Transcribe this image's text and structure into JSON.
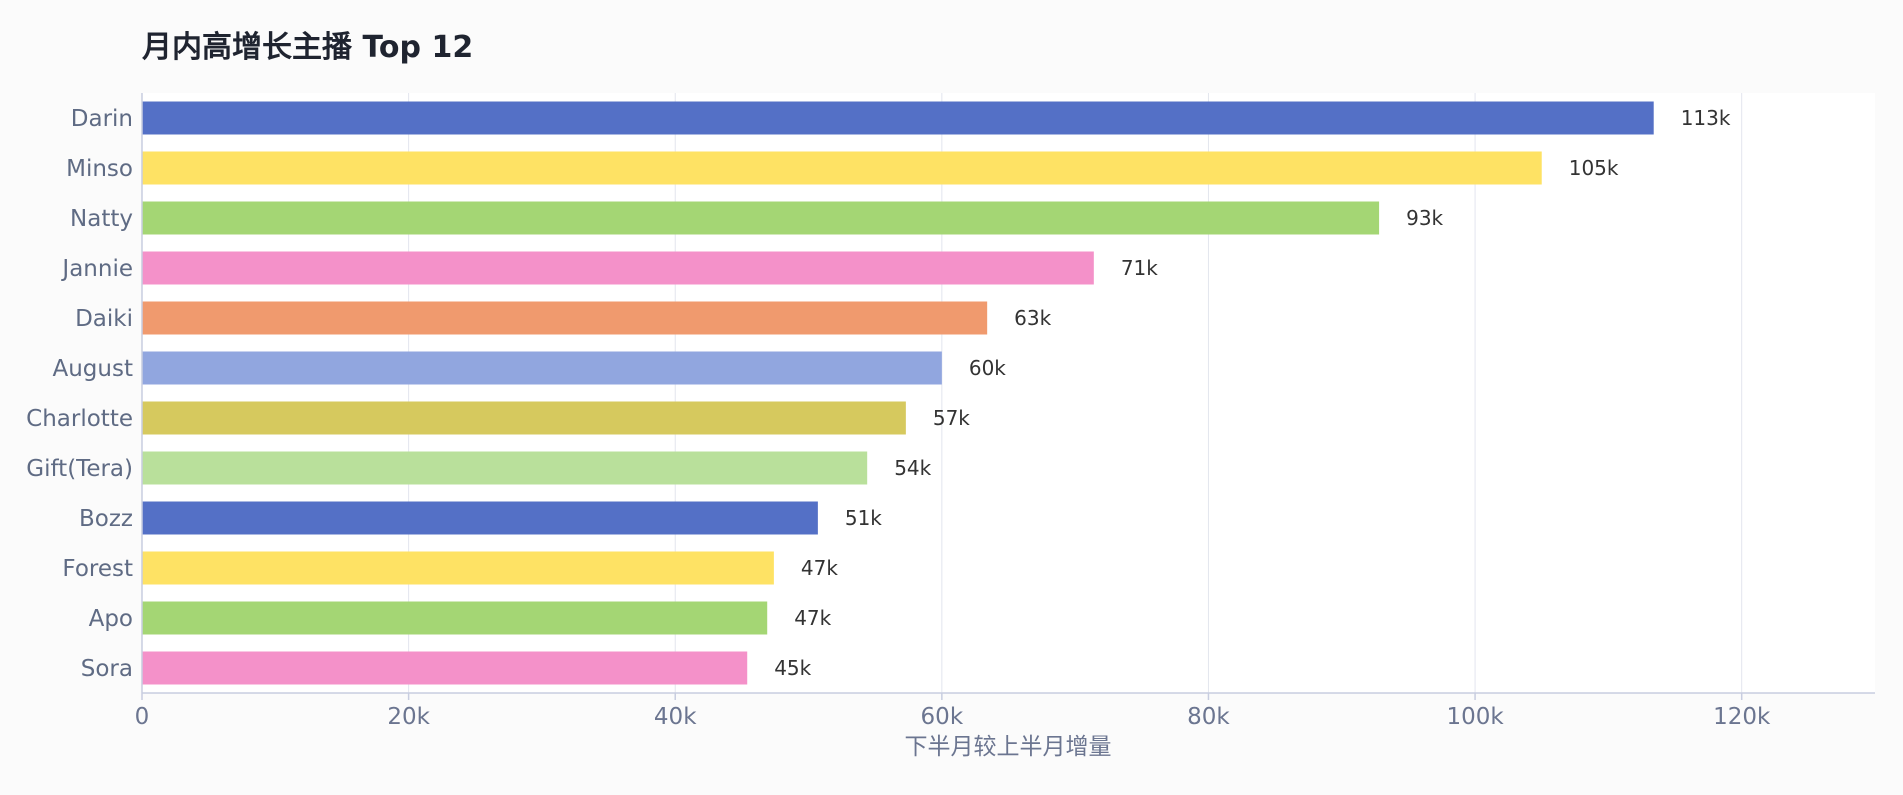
{
  "chart_data": {
    "type": "bar",
    "orientation": "horizontal",
    "title": "月内高增长主播 Top 12",
    "xlabel": "下半月较上半月增量",
    "ylabel": "",
    "xlim": [
      0,
      130000
    ],
    "grid": true,
    "categories": [
      "Darin",
      "Minso",
      "Natty",
      "Jannie",
      "Daiki",
      "August",
      "Charlotte",
      "Gift(Tera)",
      "Bozz",
      "Forest",
      "Apo",
      "Sora"
    ],
    "values": [
      113400,
      105000,
      92800,
      71400,
      63400,
      60000,
      57300,
      54400,
      50700,
      47400,
      46900,
      45400
    ],
    "value_labels": [
      "113k",
      "105k",
      "93k",
      "71k",
      "63k",
      "60k",
      "57k",
      "54k",
      "51k",
      "47k",
      "47k",
      "45k"
    ],
    "ticks": [
      0,
      20000,
      40000,
      60000,
      80000,
      100000,
      120000
    ],
    "tick_labels": [
      "0",
      "20k",
      "40k",
      "60k",
      "80k",
      "100k",
      "120k"
    ],
    "colors": [
      "#5470c6",
      "#fee264",
      "#a4d674",
      "#f491c9",
      "#f09a6e",
      "#91a6df",
      "#d6c95e",
      "#b9e09b",
      "#5470c6",
      "#fee264",
      "#a4d674",
      "#f491c9"
    ]
  }
}
